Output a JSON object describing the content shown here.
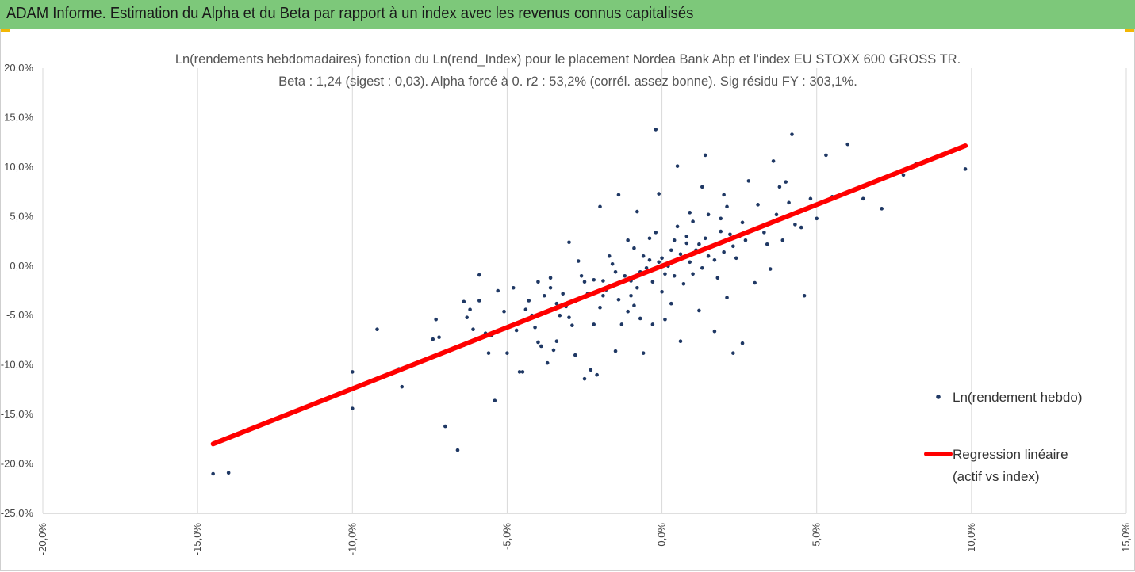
{
  "header": {
    "title": "ADAM Informe. Estimation du Alpha et du Beta par rapport à un index avec les revenus connus capitalisés"
  },
  "colors": {
    "banner": "#7dc87a",
    "accent": "#f2b705",
    "points": "#1f3864",
    "regression": "#ff0000",
    "grid": "#d9d9d9"
  },
  "chart_data": {
    "type": "scatter",
    "title_line1": "Ln(rendements hebdomadaires) fonction du Ln(rend_Index) pour le placement Nordea Bank Abp et l'index EU STOXX 600 GROSS TR.",
    "title_line2": "Beta : 1,24 (sigest : 0,03).  Alpha forcé à 0. r2 : 53,2% (corrél. assez bonne). Sig résidu FY : 303,1%.",
    "xlim": [
      -20,
      15
    ],
    "ylim": [
      -25,
      20
    ],
    "x_ticks": [
      "-20,0%",
      "-15,0%",
      "-10,0%",
      "-5,0%",
      "0,0%",
      "5,0%",
      "10,0%",
      "15,0%"
    ],
    "y_ticks": [
      "20,0%",
      "15,0%",
      "10,0%",
      "5,0%",
      "0,0%",
      "-5,0%",
      "-10,0%",
      "-15,0%",
      "-20,0%",
      "-25,0%"
    ],
    "grid": "vertical",
    "legend_position": "right",
    "series": [
      {
        "name": "Ln(rendement hebdo)",
        "type": "scatter",
        "points": [
          [
            -14.5,
            -21.0
          ],
          [
            -14.0,
            -20.9
          ],
          [
            -10.0,
            -14.4
          ],
          [
            -10.0,
            -10.7
          ],
          [
            -9.2,
            -6.4
          ],
          [
            -8.4,
            -12.2
          ],
          [
            -8.5,
            -10.4
          ],
          [
            -7.4,
            -7.4
          ],
          [
            -7.3,
            -5.4
          ],
          [
            -7.2,
            -7.2
          ],
          [
            -7.0,
            -16.2
          ],
          [
            -6.6,
            -18.6
          ],
          [
            -6.4,
            -3.6
          ],
          [
            -6.4,
            -8.0
          ],
          [
            -6.3,
            -5.2
          ],
          [
            -6.2,
            -4.4
          ],
          [
            -6.1,
            -6.4
          ],
          [
            -5.9,
            -0.9
          ],
          [
            -5.9,
            -3.5
          ],
          [
            -5.7,
            -6.8
          ],
          [
            -5.6,
            -8.8
          ],
          [
            -5.5,
            -7.0
          ],
          [
            -5.4,
            -13.6
          ],
          [
            -5.3,
            -2.5
          ],
          [
            -5.1,
            -4.6
          ],
          [
            -5.0,
            -8.8
          ],
          [
            -4.8,
            -2.2
          ],
          [
            -4.7,
            -6.5
          ],
          [
            -4.6,
            -10.7
          ],
          [
            -4.5,
            -10.7
          ],
          [
            -4.4,
            -5.4
          ],
          [
            -4.3,
            -3.5
          ],
          [
            -4.2,
            -5.0
          ],
          [
            -4.1,
            -6.2
          ],
          [
            -4.0,
            -1.6
          ],
          [
            -4.0,
            -7.7
          ],
          [
            -3.9,
            -8.1
          ],
          [
            -3.8,
            -3.0
          ],
          [
            -3.7,
            -9.8
          ],
          [
            -3.6,
            -1.2
          ],
          [
            -3.5,
            -8.5
          ],
          [
            -3.4,
            -7.6
          ],
          [
            -3.3,
            -5.0
          ],
          [
            -3.2,
            -2.8
          ],
          [
            -3.1,
            -4.1
          ],
          [
            -3.0,
            2.4
          ],
          [
            -2.9,
            -6.0
          ],
          [
            -2.8,
            -9.0
          ],
          [
            -2.7,
            0.5
          ],
          [
            -2.6,
            -3.2
          ],
          [
            -2.5,
            -1.6
          ],
          [
            -2.5,
            -11.4
          ],
          [
            -2.3,
            -10.5
          ],
          [
            -2.2,
            -5.9
          ],
          [
            -2.1,
            -11.0
          ],
          [
            -2.0,
            6.0
          ],
          [
            -1.9,
            -1.5
          ],
          [
            -1.7,
            1.0
          ],
          [
            -1.5,
            -8.6
          ],
          [
            -1.4,
            7.2
          ],
          [
            -1.3,
            -5.9
          ],
          [
            -1.1,
            -4.6
          ],
          [
            -1.0,
            -3.0
          ],
          [
            -0.8,
            5.5
          ],
          [
            -0.7,
            -5.3
          ],
          [
            -0.6,
            -8.8
          ],
          [
            -0.4,
            2.8
          ],
          [
            -0.3,
            -5.9
          ],
          [
            -0.2,
            13.8
          ],
          [
            -0.1,
            7.3
          ],
          [
            0.1,
            -5.4
          ],
          [
            0.3,
            -3.8
          ],
          [
            0.4,
            -1.0
          ],
          [
            0.5,
            10.1
          ],
          [
            0.6,
            -7.6
          ],
          [
            0.8,
            2.3
          ],
          [
            1.0,
            4.5
          ],
          [
            1.2,
            -4.5
          ],
          [
            1.3,
            8.0
          ],
          [
            1.4,
            11.2
          ],
          [
            1.5,
            5.2
          ],
          [
            1.7,
            -6.6
          ],
          [
            1.9,
            3.5
          ],
          [
            2.0,
            7.2
          ],
          [
            2.1,
            6.0
          ],
          [
            2.3,
            -8.8
          ],
          [
            2.5,
            3.0
          ],
          [
            2.6,
            -7.8
          ],
          [
            2.8,
            8.6
          ],
          [
            3.0,
            -1.7
          ],
          [
            3.1,
            6.2
          ],
          [
            3.3,
            3.4
          ],
          [
            3.5,
            -0.3
          ],
          [
            3.6,
            10.6
          ],
          [
            3.8,
            8.0
          ],
          [
            4.0,
            8.5
          ],
          [
            4.2,
            13.3
          ],
          [
            4.3,
            4.2
          ],
          [
            4.5,
            3.9
          ],
          [
            4.6,
            -3.0
          ],
          [
            4.8,
            6.8
          ],
          [
            5.0,
            4.8
          ],
          [
            5.3,
            11.2
          ],
          [
            5.5,
            7.0
          ],
          [
            6.0,
            12.3
          ],
          [
            6.5,
            6.8
          ],
          [
            7.1,
            5.8
          ],
          [
            7.8,
            9.2
          ],
          [
            8.2,
            10.3
          ],
          [
            9.8,
            9.8
          ],
          [
            -1.0,
            -1.5
          ],
          [
            -0.7,
            -0.6
          ],
          [
            -0.4,
            0.6
          ],
          [
            0.2,
            0.0
          ],
          [
            0.6,
            1.2
          ],
          [
            1.1,
            1.6
          ],
          [
            1.6,
            2.0
          ],
          [
            2.2,
            3.2
          ],
          [
            2.7,
            2.6
          ],
          [
            3.2,
            4.0
          ],
          [
            -2.4,
            -2.8
          ],
          [
            -1.8,
            -2.4
          ],
          [
            -1.2,
            -1.0
          ],
          [
            -0.5,
            -0.2
          ],
          [
            0.0,
            0.8
          ],
          [
            0.9,
            0.4
          ],
          [
            1.4,
            2.8
          ],
          [
            2.0,
            1.4
          ],
          [
            2.6,
            4.4
          ],
          [
            -3.4,
            -3.8
          ],
          [
            -2.8,
            -3.6
          ],
          [
            -2.2,
            -1.4
          ],
          [
            -1.6,
            0.2
          ],
          [
            -0.9,
            1.8
          ],
          [
            -0.3,
            -1.6
          ],
          [
            0.4,
            2.6
          ],
          [
            1.0,
            -0.8
          ],
          [
            1.7,
            0.6
          ],
          [
            2.4,
            0.8
          ],
          [
            3.4,
            2.2
          ],
          [
            -1.4,
            -3.4
          ],
          [
            -0.8,
            -2.2
          ],
          [
            0.7,
            -1.8
          ],
          [
            1.3,
            -0.2
          ],
          [
            1.9,
            4.8
          ],
          [
            -0.2,
            3.4
          ],
          [
            0.5,
            4.0
          ],
          [
            -1.1,
            2.6
          ],
          [
            -2.0,
            -4.2
          ],
          [
            -3.0,
            -5.2
          ],
          [
            -0.6,
            1.0
          ],
          [
            0.1,
            -0.8
          ],
          [
            0.8,
            3.0
          ],
          [
            1.5,
            1.0
          ],
          [
            2.3,
            2.0
          ],
          [
            -1.5,
            -0.6
          ],
          [
            -0.1,
            0.4
          ],
          [
            0.3,
            1.6
          ],
          [
            1.2,
            2.2
          ],
          [
            -2.6,
            -1.0
          ],
          [
            -1.9,
            -3.0
          ],
          [
            2.9,
            3.6
          ],
          [
            3.7,
            5.2
          ],
          [
            -0.9,
            -4.0
          ],
          [
            0.0,
            -2.6
          ],
          [
            0.9,
            5.4
          ],
          [
            1.8,
            -1.2
          ],
          [
            -3.6,
            -2.2
          ],
          [
            4.1,
            6.4
          ],
          [
            -4.4,
            -4.4
          ],
          [
            3.9,
            2.6
          ],
          [
            2.1,
            -3.2
          ]
        ]
      },
      {
        "name": "Regression linéaire (actif vs index)",
        "name_line1": "Regression linéaire",
        "name_line2": "(actif vs index)",
        "type": "line",
        "slope": 1.24,
        "intercept": 0,
        "x_range": [
          -14.5,
          9.8
        ]
      }
    ]
  }
}
